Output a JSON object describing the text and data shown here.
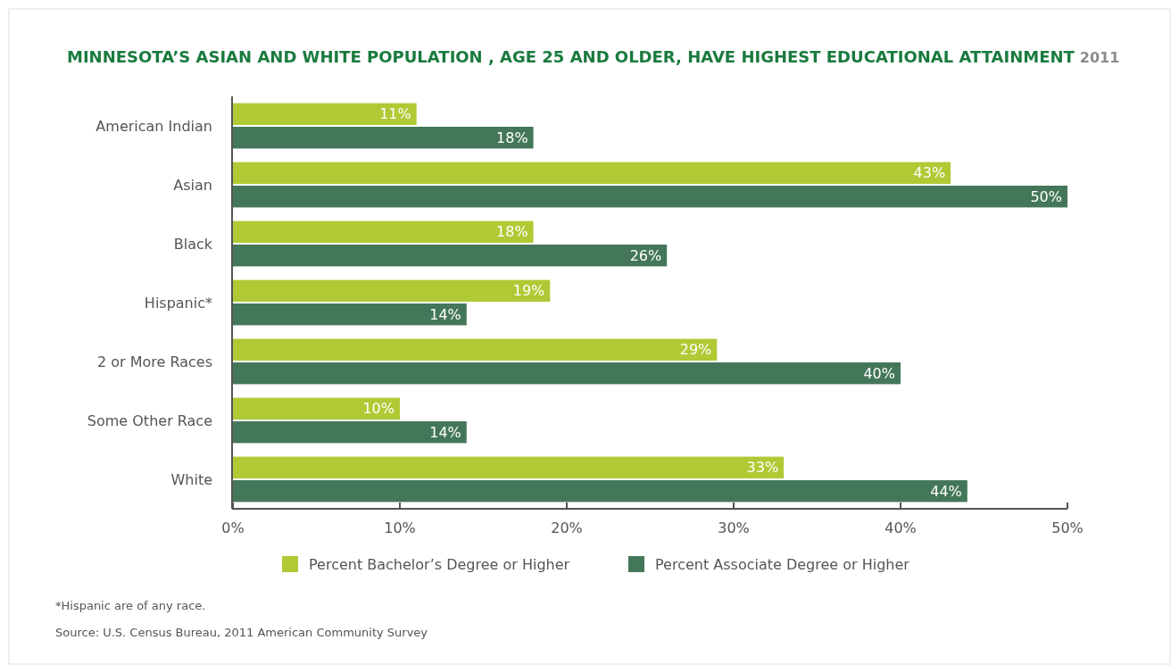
{
  "chart_data": {
    "type": "bar",
    "orientation": "horizontal",
    "title": "MINNESOTA’S ASIAN AND WHITE POPULATION , AGE 25 AND OLDER, HAVE HIGHEST EDUCATIONAL ATTAINMENT",
    "subtitle": "2011",
    "categories": [
      "American Indian",
      "Asian",
      "Black",
      "Hispanic*",
      "2 or More Races",
      "Some Other Race",
      "White"
    ],
    "series": [
      {
        "name": "Percent Bachelor’s Degree or Higher",
        "color": "#afca35",
        "values": [
          11,
          43,
          18,
          19,
          29,
          10,
          33
        ],
        "value_labels": [
          "11%",
          "43%",
          "18%",
          "19%",
          "29%",
          "10%",
          "33%"
        ]
      },
      {
        "name": "Percent Associate Degree or Higher",
        "color": "#44775a",
        "values": [
          18,
          50,
          26,
          14,
          40,
          14,
          44
        ],
        "value_labels": [
          "18%",
          "50%",
          "26%",
          "14%",
          "40%",
          "14%",
          "44%"
        ]
      }
    ],
    "xlim": [
      0,
      50
    ],
    "xticks": [
      {
        "value": 0,
        "label": "0%"
      },
      {
        "value": 10,
        "label": "10%"
      },
      {
        "value": 20,
        "label": "20%"
      },
      {
        "value": 30,
        "label": "30%"
      },
      {
        "value": 40,
        "label": "40%"
      },
      {
        "value": 50,
        "label": "50%"
      }
    ],
    "grid": false,
    "legend": "bottom",
    "annotations": [
      "*Hispanic are of any race.",
      "Source: U.S. Census Bureau, 2011 American Community Survey"
    ]
  }
}
